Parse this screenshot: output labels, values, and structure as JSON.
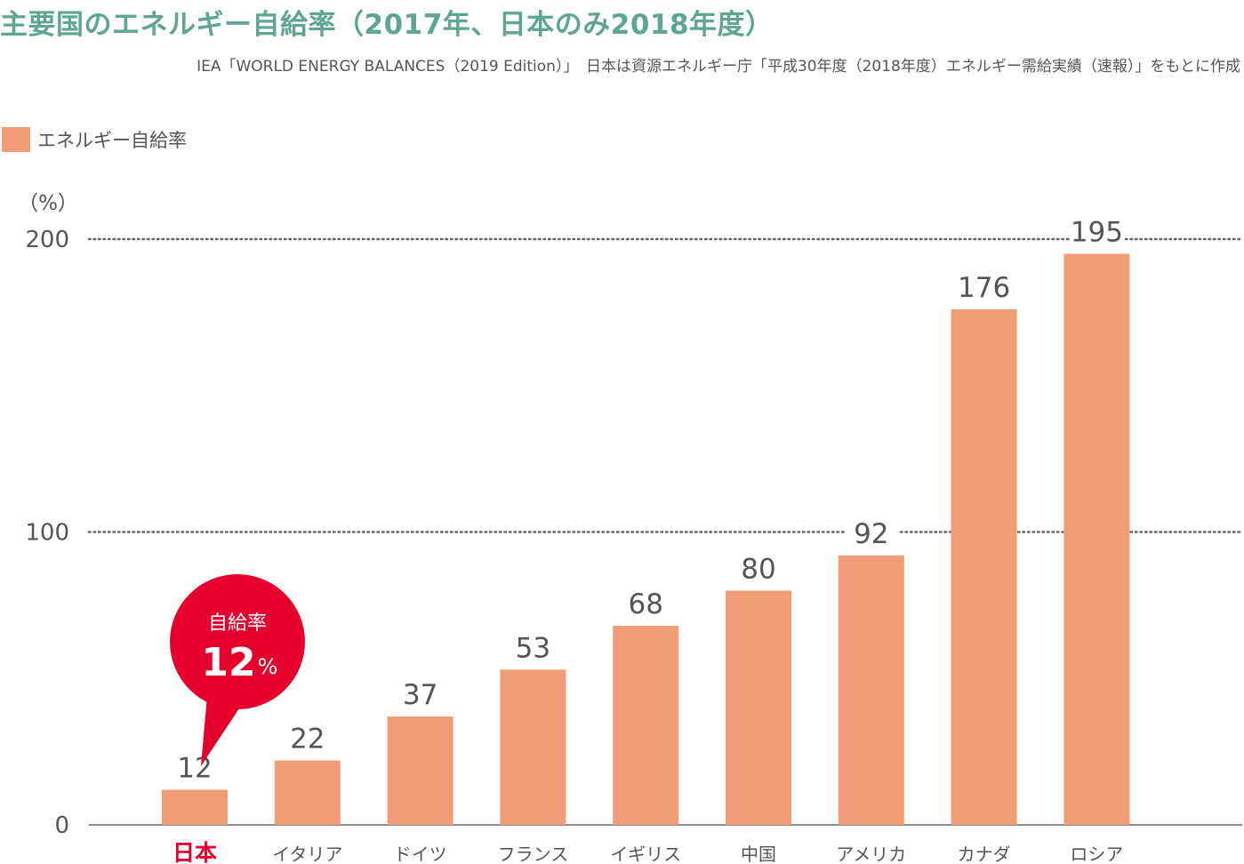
{
  "title": "主要国のエネルギー自給率（2017年、日本のみ2018年度）",
  "source": "IEA「WORLD ENERGY BALANCES（2019 Edition）」　日本は資源エネルギー庁「平成30年度（2018年度）エネルギー需給実績（速報）」をもとに作成",
  "colors": {
    "bar": "#f09c77",
    "highlight": "#e5002d",
    "title": "#5fa593",
    "grid": "#666666",
    "text": "#555555"
  },
  "callout": {
    "label": "自給率",
    "value": "12",
    "unit": "%"
  },
  "chart_data": {
    "type": "bar",
    "ylabel": "（%）",
    "ylim": [
      0,
      200
    ],
    "yticks": [
      "0",
      "100",
      "200"
    ],
    "grid": "dotted horizontal at 100 and 200",
    "legend": "top-left",
    "series": [
      {
        "name": "エネルギー自給率",
        "values": [
          12,
          22,
          37,
          53,
          68,
          80,
          92,
          176,
          195
        ]
      }
    ],
    "categories": [
      "日本",
      "イタリア",
      "ドイツ",
      "フランス",
      "イギリス",
      "中国",
      "アメリカ",
      "カナダ",
      "ロシア"
    ],
    "value_labels": [
      "12",
      "22",
      "37",
      "53",
      "68",
      "80",
      "92",
      "176",
      "195"
    ],
    "highlight_category": "日本"
  }
}
